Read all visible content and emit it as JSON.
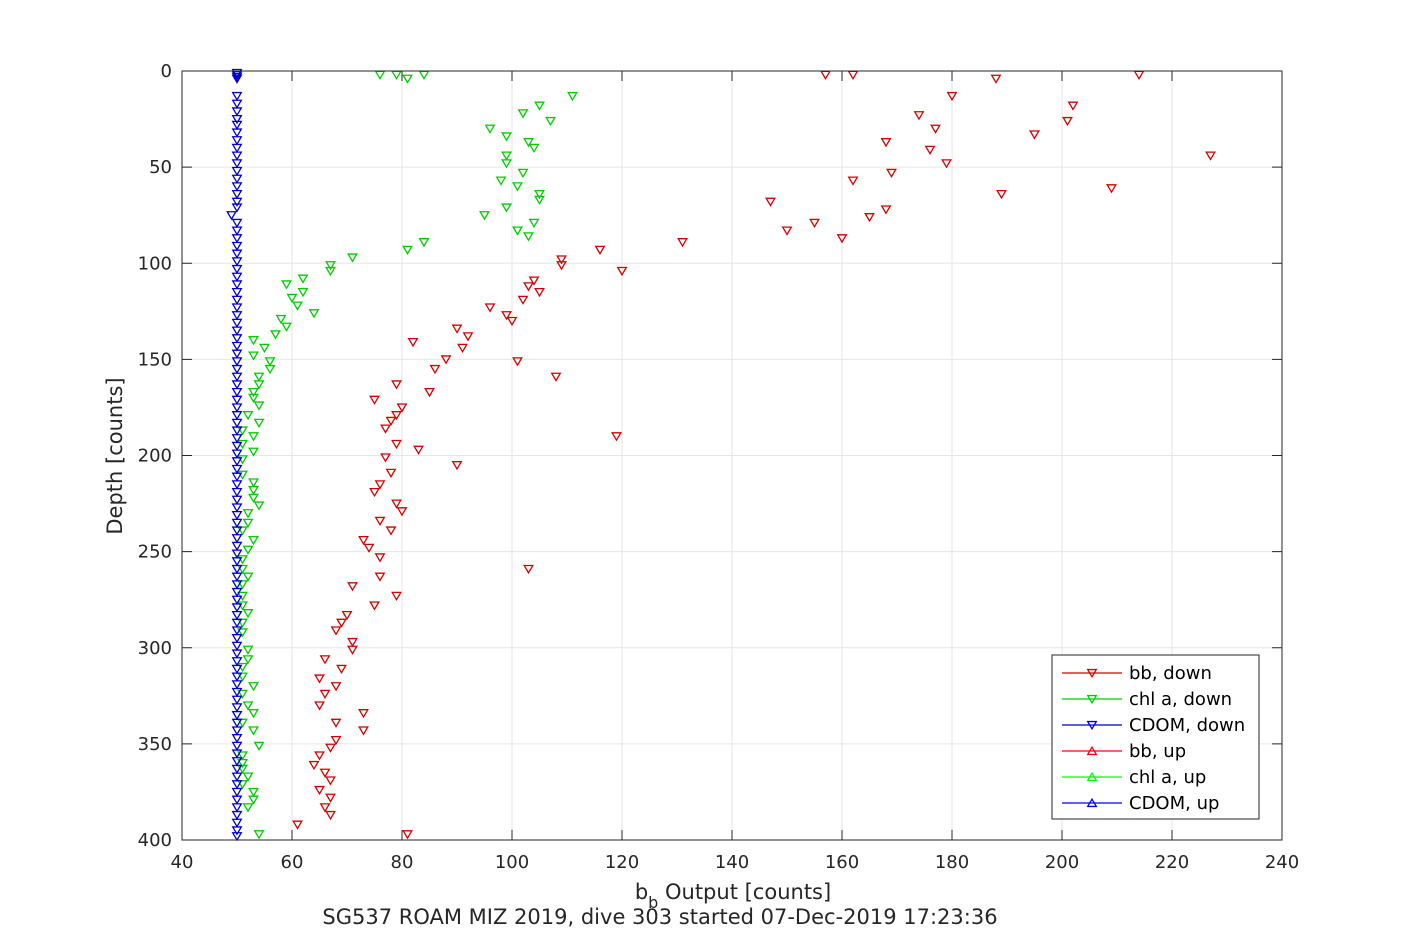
{
  "chart_data": {
    "type": "scatter",
    "xlabel_main": "b",
    "xlabel_sub": "b",
    "xlabel_rest": " Output [counts]",
    "ylabel": "Depth [counts]",
    "caption": "SG537 ROAM MIZ 2019, dive 303 started 07-Dec-2019 17:23:36",
    "xlim": [
      40,
      240
    ],
    "ylim": [
      0,
      400
    ],
    "y_reversed": true,
    "grid": true,
    "legend_position": "bottom-right",
    "x_ticks": [
      40,
      60,
      80,
      100,
      120,
      140,
      160,
      180,
      200,
      220,
      240
    ],
    "y_ticks": [
      0,
      50,
      100,
      150,
      200,
      250,
      300,
      350,
      400
    ],
    "series": [
      {
        "name": "bb, down",
        "color": "#d40000",
        "marker": "triangle-down",
        "points": [
          [
            157,
            2
          ],
          [
            162,
            2
          ],
          [
            188,
            4
          ],
          [
            214,
            2
          ],
          [
            180,
            13
          ],
          [
            202,
            18
          ],
          [
            174,
            23
          ],
          [
            201,
            26
          ],
          [
            177,
            30
          ],
          [
            195,
            33
          ],
          [
            168,
            37
          ],
          [
            176,
            41
          ],
          [
            227,
            44
          ],
          [
            179,
            48
          ],
          [
            169,
            53
          ],
          [
            162,
            57
          ],
          [
            209,
            61
          ],
          [
            189,
            64
          ],
          [
            147,
            68
          ],
          [
            168,
            72
          ],
          [
            165,
            76
          ],
          [
            155,
            79
          ],
          [
            150,
            83
          ],
          [
            160,
            87
          ],
          [
            131,
            89
          ],
          [
            116,
            93
          ],
          [
            109,
            98
          ],
          [
            109,
            101
          ],
          [
            120,
            104
          ],
          [
            104,
            109
          ],
          [
            103,
            112
          ],
          [
            105,
            115
          ],
          [
            102,
            119
          ],
          [
            96,
            123
          ],
          [
            99,
            127
          ],
          [
            100,
            130
          ],
          [
            90,
            134
          ],
          [
            92,
            138
          ],
          [
            82,
            141
          ],
          [
            91,
            144
          ],
          [
            88,
            150
          ],
          [
            101,
            151
          ],
          [
            86,
            155
          ],
          [
            108,
            159
          ],
          [
            79,
            163
          ],
          [
            85,
            167
          ],
          [
            75,
            171
          ],
          [
            80,
            175
          ],
          [
            79,
            179
          ],
          [
            78,
            182
          ],
          [
            77,
            186
          ],
          [
            119,
            190
          ],
          [
            79,
            194
          ],
          [
            83,
            197
          ],
          [
            77,
            201
          ],
          [
            90,
            205
          ],
          [
            78,
            209
          ],
          [
            76,
            215
          ],
          [
            75,
            219
          ],
          [
            79,
            225
          ],
          [
            80,
            229
          ],
          [
            76,
            234
          ],
          [
            78,
            239
          ],
          [
            73,
            244
          ],
          [
            74,
            248
          ],
          [
            76,
            253
          ],
          [
            103,
            259
          ],
          [
            76,
            263
          ],
          [
            71,
            268
          ],
          [
            79,
            273
          ],
          [
            75,
            278
          ],
          [
            70,
            283
          ],
          [
            69,
            287
          ],
          [
            68,
            291
          ],
          [
            71,
            297
          ],
          [
            71,
            301
          ],
          [
            66,
            306
          ],
          [
            69,
            311
          ],
          [
            65,
            316
          ],
          [
            68,
            320
          ],
          [
            66,
            324
          ],
          [
            73,
            334
          ],
          [
            65,
            330
          ],
          [
            68,
            339
          ],
          [
            73,
            343
          ],
          [
            68,
            348
          ],
          [
            67,
            352
          ],
          [
            65,
            356
          ],
          [
            64,
            361
          ],
          [
            66,
            365
          ],
          [
            67,
            369
          ],
          [
            65,
            374
          ],
          [
            67,
            378
          ],
          [
            66,
            383
          ],
          [
            67,
            387
          ],
          [
            61,
            392
          ],
          [
            81,
            397
          ]
        ]
      },
      {
        "name": "chl a, down",
        "color": "#00cc00",
        "marker": "triangle-down",
        "points": [
          [
            76,
            2
          ],
          [
            79,
            2
          ],
          [
            84,
            2
          ],
          [
            81,
            4
          ],
          [
            111,
            13
          ],
          [
            105,
            18
          ],
          [
            102,
            22
          ],
          [
            107,
            26
          ],
          [
            96,
            30
          ],
          [
            99,
            34
          ],
          [
            103,
            37
          ],
          [
            104,
            40
          ],
          [
            99,
            44
          ],
          [
            99,
            48
          ],
          [
            102,
            53
          ],
          [
            98,
            57
          ],
          [
            101,
            60
          ],
          [
            105,
            64
          ],
          [
            105,
            67
          ],
          [
            99,
            71
          ],
          [
            95,
            75
          ],
          [
            104,
            79
          ],
          [
            101,
            83
          ],
          [
            103,
            86
          ],
          [
            84,
            89
          ],
          [
            81,
            93
          ],
          [
            71,
            97
          ],
          [
            67,
            101
          ],
          [
            67,
            104
          ],
          [
            62,
            108
          ],
          [
            59,
            111
          ],
          [
            62,
            115
          ],
          [
            60,
            118
          ],
          [
            61,
            122
          ],
          [
            64,
            126
          ],
          [
            58,
            129
          ],
          [
            59,
            133
          ],
          [
            57,
            137
          ],
          [
            53,
            140
          ],
          [
            55,
            144
          ],
          [
            53,
            148
          ],
          [
            56,
            151
          ],
          [
            56,
            155
          ],
          [
            54,
            159
          ],
          [
            54,
            163
          ],
          [
            53,
            167
          ],
          [
            53,
            170
          ],
          [
            54,
            174
          ],
          [
            52,
            179
          ],
          [
            54,
            183
          ],
          [
            51,
            187
          ],
          [
            53,
            190
          ],
          [
            51,
            194
          ],
          [
            53,
            198
          ],
          [
            51,
            202
          ],
          [
            51,
            210
          ],
          [
            53,
            214
          ],
          [
            53,
            218
          ],
          [
            53,
            222
          ],
          [
            54,
            226
          ],
          [
            52,
            230
          ],
          [
            52,
            235
          ],
          [
            51,
            239
          ],
          [
            53,
            244
          ],
          [
            52,
            249
          ],
          [
            51,
            254
          ],
          [
            51,
            259
          ],
          [
            52,
            263
          ],
          [
            51,
            267
          ],
          [
            51,
            273
          ],
          [
            51,
            278
          ],
          [
            52,
            282
          ],
          [
            51,
            287
          ],
          [
            51,
            292
          ],
          [
            52,
            301
          ],
          [
            52,
            306
          ],
          [
            51,
            310
          ],
          [
            51,
            315
          ],
          [
            53,
            320
          ],
          [
            51,
            324
          ],
          [
            52,
            330
          ],
          [
            53,
            334
          ],
          [
            51,
            339
          ],
          [
            53,
            343
          ],
          [
            54,
            351
          ],
          [
            51,
            356
          ],
          [
            51,
            360
          ],
          [
            51,
            363
          ],
          [
            52,
            367
          ],
          [
            51,
            371
          ],
          [
            53,
            375
          ],
          [
            53,
            379
          ],
          [
            52,
            383
          ],
          [
            54,
            397
          ]
        ]
      },
      {
        "name": "CDOM, down",
        "color": "#0000cc",
        "marker": "triangle-down",
        "points": [
          [
            50,
            1
          ],
          [
            50,
            2
          ],
          [
            50,
            3
          ],
          [
            50,
            4
          ],
          [
            50,
            13
          ],
          [
            50,
            17
          ],
          [
            50,
            21
          ],
          [
            50,
            25
          ],
          [
            50,
            28
          ],
          [
            50,
            32
          ],
          [
            50,
            36
          ],
          [
            50,
            40
          ],
          [
            50,
            44
          ],
          [
            50,
            48
          ],
          [
            50,
            52
          ],
          [
            50,
            56
          ],
          [
            50,
            60
          ],
          [
            50,
            64
          ],
          [
            50,
            68
          ],
          [
            50,
            71
          ],
          [
            49,
            75
          ],
          [
            50,
            79
          ],
          [
            50,
            83
          ],
          [
            50,
            87
          ],
          [
            50,
            91
          ],
          [
            50,
            95
          ],
          [
            50,
            99
          ],
          [
            50,
            103
          ],
          [
            50,
            107
          ],
          [
            50,
            111
          ],
          [
            50,
            115
          ],
          [
            50,
            119
          ],
          [
            50,
            123
          ],
          [
            50,
            127
          ],
          [
            50,
            131
          ],
          [
            50,
            135
          ],
          [
            50,
            139
          ],
          [
            50,
            143
          ],
          [
            50,
            147
          ],
          [
            50,
            151
          ],
          [
            50,
            155
          ],
          [
            50,
            159
          ],
          [
            50,
            163
          ],
          [
            50,
            167
          ],
          [
            50,
            171
          ],
          [
            50,
            175
          ],
          [
            50,
            179
          ],
          [
            50,
            183
          ],
          [
            50,
            187
          ],
          [
            50,
            191
          ],
          [
            50,
            195
          ],
          [
            50,
            199
          ],
          [
            50,
            203
          ],
          [
            50,
            207
          ],
          [
            50,
            211
          ],
          [
            50,
            215
          ],
          [
            50,
            219
          ],
          [
            50,
            223
          ],
          [
            50,
            227
          ],
          [
            50,
            231
          ],
          [
            50,
            235
          ],
          [
            50,
            239
          ],
          [
            50,
            243
          ],
          [
            50,
            247
          ],
          [
            50,
            251
          ],
          [
            50,
            255
          ],
          [
            50,
            259
          ],
          [
            50,
            263
          ],
          [
            50,
            267
          ],
          [
            50,
            271
          ],
          [
            50,
            275
          ],
          [
            50,
            279
          ],
          [
            50,
            283
          ],
          [
            50,
            287
          ],
          [
            50,
            291
          ],
          [
            50,
            295
          ],
          [
            50,
            299
          ],
          [
            50,
            303
          ],
          [
            50,
            307
          ],
          [
            50,
            311
          ],
          [
            50,
            315
          ],
          [
            50,
            319
          ],
          [
            50,
            323
          ],
          [
            50,
            327
          ],
          [
            50,
            331
          ],
          [
            50,
            335
          ],
          [
            50,
            339
          ],
          [
            50,
            343
          ],
          [
            50,
            347
          ],
          [
            50,
            351
          ],
          [
            50,
            355
          ],
          [
            50,
            359
          ],
          [
            50,
            363
          ],
          [
            50,
            367
          ],
          [
            50,
            371
          ],
          [
            50,
            375
          ],
          [
            50,
            379
          ],
          [
            50,
            383
          ],
          [
            50,
            387
          ],
          [
            50,
            391
          ],
          [
            50,
            395
          ],
          [
            50,
            398
          ]
        ]
      },
      {
        "name": "bb, up",
        "color": "#ff0000",
        "marker": "triangle-up",
        "points": []
      },
      {
        "name": "chl a, up",
        "color": "#00ff00",
        "marker": "triangle-up",
        "points": []
      },
      {
        "name": "CDOM, up",
        "color": "#0000ff",
        "marker": "triangle-up",
        "points": []
      }
    ]
  }
}
